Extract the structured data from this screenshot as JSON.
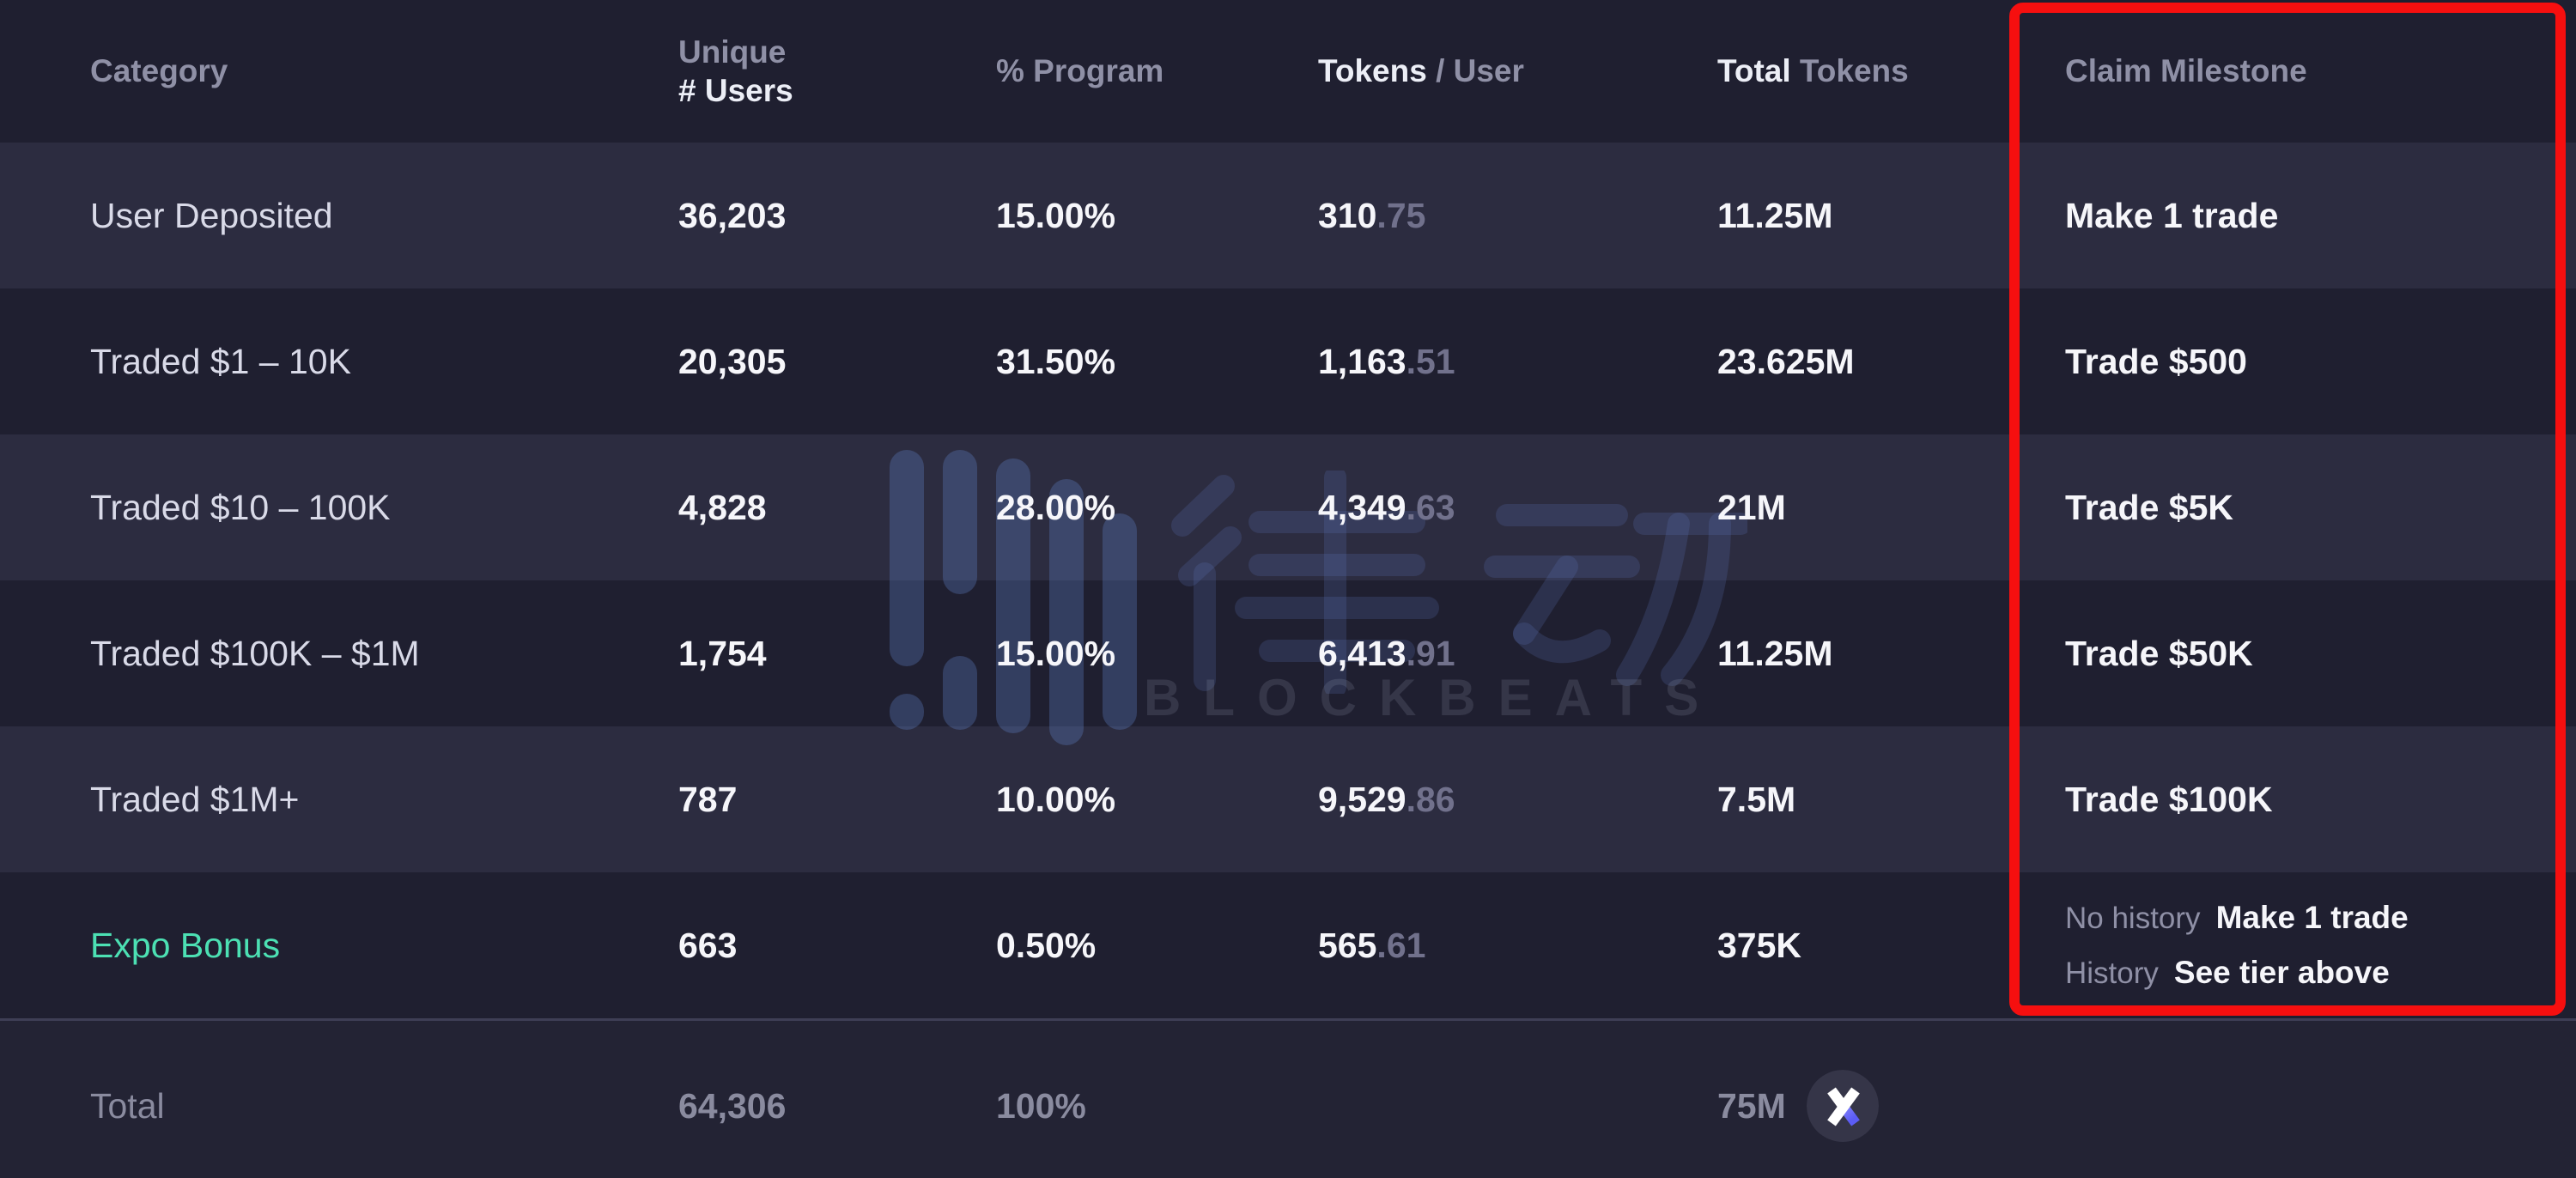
{
  "chart_data": {
    "type": "table",
    "title": "Token claim distribution by trading category",
    "columns": [
      "Category",
      "Unique # Users",
      "% Program",
      "Tokens / User",
      "Total Tokens",
      "Claim Milestone"
    ],
    "rows": [
      [
        "User Deposited",
        "36,203",
        "15.00%",
        "310.75",
        "11.25M",
        "Make 1 trade"
      ],
      [
        "Traded $1 – 10K",
        "20,305",
        "31.50%",
        "1,163.51",
        "23.625M",
        "Trade $500"
      ],
      [
        "Traded $10 – 100K",
        "4,828",
        "28.00%",
        "4,349.63",
        "21M",
        "Trade $5K"
      ],
      [
        "Traded $100K – $1M",
        "1,754",
        "15.00%",
        "6,413.91",
        "11.25M",
        "Trade $50K"
      ],
      [
        "Traded $1M+",
        "787",
        "10.00%",
        "9,529.86",
        "7.5M",
        "Trade $100K"
      ],
      [
        "Expo Bonus",
        "663",
        "0.50%",
        "565.61",
        "375K",
        "No history: Make 1 trade / History: See tier above"
      ],
      [
        "Total",
        "64,306",
        "100%",
        "",
        "75M",
        ""
      ]
    ],
    "layout_hints": {
      "highlighted_column": "Claim Milestone",
      "alternating_row_shading": true
    }
  },
  "table": {
    "header": [
      {
        "id": "category",
        "parts": [
          {
            "t": "Category",
            "em": false
          }
        ]
      },
      {
        "id": "users",
        "stack": true,
        "parts": [
          {
            "t": "Unique",
            "em": false
          },
          {
            "t": "# Users",
            "em": true
          }
        ]
      },
      {
        "id": "program",
        "parts": [
          {
            "t": "% Program",
            "em": false
          }
        ]
      },
      {
        "id": "tokens-user",
        "parts": [
          {
            "t": "Tokens",
            "em": true
          },
          {
            "t": " / User",
            "em": false
          }
        ]
      },
      {
        "id": "total-tokens",
        "parts": [
          {
            "t": "Total",
            "em": true
          },
          {
            "t": " Tokens",
            "em": false
          }
        ]
      },
      {
        "id": "claim-milestone",
        "parts": [
          {
            "t": "Claim Milestone",
            "em": false
          }
        ]
      }
    ],
    "rows": [
      {
        "category": "User Deposited",
        "users": "36,203",
        "program": "15.00%",
        "tokens_int": "310",
        "tokens_dec": ".75",
        "total": "11.25M",
        "milestone": "Make 1 trade"
      },
      {
        "category": "Traded $1 – 10K",
        "users": "20,305",
        "program": "31.50%",
        "tokens_int": "1,163",
        "tokens_dec": ".51",
        "total": "23.625M",
        "milestone": "Trade $500"
      },
      {
        "category": "Traded $10 – 100K",
        "users": "4,828",
        "program": "28.00%",
        "tokens_int": "4,349",
        "tokens_dec": ".63",
        "total": "21M",
        "milestone": "Trade $5K"
      },
      {
        "category": "Traded $100K – $1M",
        "users": "1,754",
        "program": "15.00%",
        "tokens_int": "6,413",
        "tokens_dec": ".91",
        "total": "11.25M",
        "milestone": "Trade $50K"
      },
      {
        "category": "Traded $1M+",
        "users": "787",
        "program": "10.00%",
        "tokens_int": "9,529",
        "tokens_dec": ".86",
        "total": "7.5M",
        "milestone": "Trade $100K"
      },
      {
        "category": "Expo Bonus",
        "category_accent": true,
        "users": "663",
        "program": "0.50%",
        "tokens_int": "565",
        "tokens_dec": ".61",
        "total": "375K",
        "milestone_lines": [
          {
            "label": "No history",
            "value": "Make 1 trade"
          },
          {
            "label": "History",
            "value": "See tier above"
          }
        ]
      }
    ],
    "total": {
      "category": "Total",
      "users": "64,306",
      "program": "100%",
      "total_tokens": "75M"
    }
  },
  "watermark": {
    "brand": "BLOCKBEATS",
    "cjk": "律动"
  },
  "colors": {
    "row_dark": "#1f1f30",
    "row_light": "#2c2c40",
    "accent_green": "#4ce0b3",
    "highlight_red": "#f60f0f",
    "badge_blue": "#5b5cf5",
    "badge_circle": "#353548",
    "watermark_blue": "#6286d0"
  }
}
